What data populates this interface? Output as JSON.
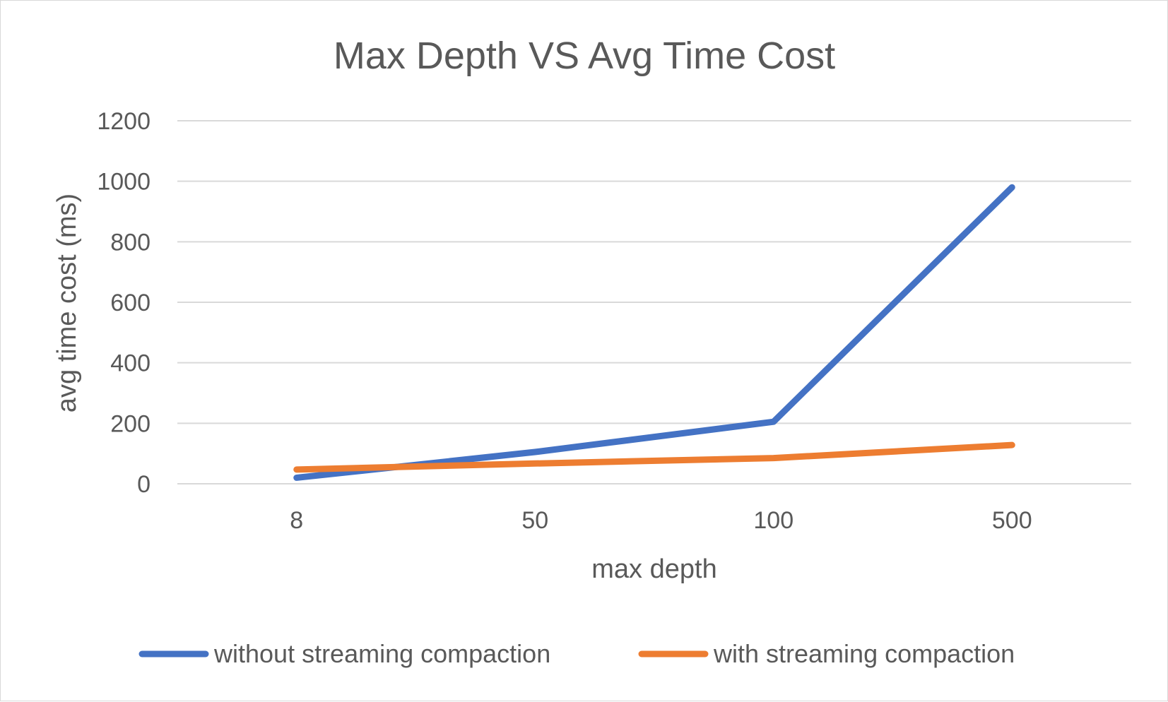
{
  "chart_data": {
    "type": "line",
    "title": "Max Depth VS Avg Time Cost",
    "xlabel": "max depth",
    "ylabel": "avg time cost (ms)",
    "categories": [
      "8",
      "50",
      "100",
      "500"
    ],
    "ylim": [
      0,
      1200
    ],
    "yticks": [
      0,
      200,
      400,
      600,
      800,
      1000,
      1200
    ],
    "grid": true,
    "legend_position": "bottom",
    "series": [
      {
        "name": "without streaming compaction",
        "values": [
          20,
          105,
          205,
          980
        ],
        "color": "#4472c4"
      },
      {
        "name": "with streaming compaction",
        "values": [
          47,
          67,
          85,
          128
        ],
        "color": "#ed7d31"
      }
    ]
  }
}
